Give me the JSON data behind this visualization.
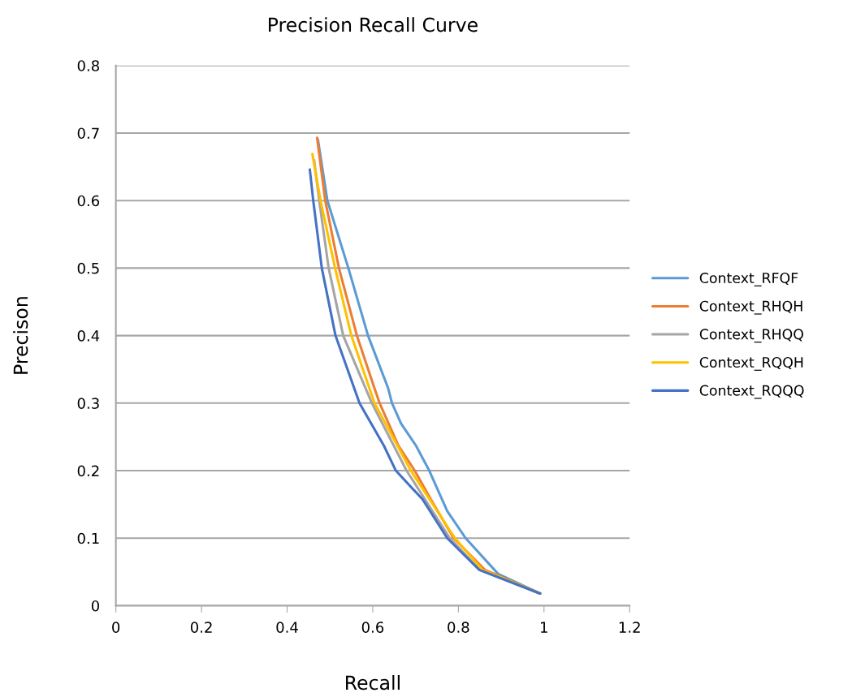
{
  "chart_data": {
    "type": "line",
    "title": "Precision Recall Curve",
    "xlabel": "Recall",
    "ylabel": "Precison",
    "xlim": [
      0,
      1.2
    ],
    "xticks": [
      0,
      0.2,
      0.4,
      0.6,
      0.8,
      1,
      1.2
    ],
    "ylim": [
      0,
      0.8
    ],
    "yticks": [
      0,
      0.1,
      0.2,
      0.3,
      0.4,
      0.5,
      0.6,
      0.7,
      0.8
    ],
    "grid": "y",
    "legend": "right",
    "marker": "none",
    "line_style": "solid",
    "series": [
      {
        "name": "Context_RFQF",
        "color": "#5b9bd5",
        "x": [
          0.472,
          0.494,
          0.543,
          0.589,
          0.636,
          0.645,
          0.666,
          0.701,
          0.732,
          0.774,
          0.817,
          0.893,
          0.991
        ],
        "values": [
          0.69,
          0.6,
          0.5,
          0.4,
          0.322,
          0.3,
          0.27,
          0.237,
          0.2,
          0.14,
          0.1,
          0.047,
          0.018
        ]
      },
      {
        "name": "Context_RHQH",
        "color": "#ed7d31",
        "x": [
          0.47,
          0.489,
          0.521,
          0.563,
          0.604,
          0.616,
          0.66,
          0.698,
          0.736,
          0.789,
          0.862,
          0.991
        ],
        "values": [
          0.693,
          0.6,
          0.5,
          0.4,
          0.322,
          0.3,
          0.237,
          0.2,
          0.157,
          0.1,
          0.053,
          0.018
        ]
      },
      {
        "name": "Context_RHQQ",
        "color": "#a5a5a5",
        "x": [
          0.463,
          0.475,
          0.497,
          0.531,
          0.598,
          0.679,
          0.78,
          0.85,
          0.991
        ],
        "values": [
          0.66,
          0.6,
          0.5,
          0.4,
          0.3,
          0.2,
          0.1,
          0.053,
          0.018
        ]
      },
      {
        "name": "Context_RQQH",
        "color": "#ffc000",
        "x": [
          0.459,
          0.478,
          0.512,
          0.55,
          0.604,
          0.689,
          0.792,
          0.856,
          0.991
        ],
        "values": [
          0.669,
          0.6,
          0.5,
          0.4,
          0.3,
          0.2,
          0.1,
          0.053,
          0.018
        ]
      },
      {
        "name": "Context_RQQQ",
        "color": "#4472c4",
        "x": [
          0.453,
          0.461,
          0.481,
          0.513,
          0.569,
          0.626,
          0.654,
          0.717,
          0.774,
          0.849,
          0.991
        ],
        "values": [
          0.646,
          0.6,
          0.5,
          0.4,
          0.3,
          0.237,
          0.2,
          0.157,
          0.1,
          0.053,
          0.018
        ]
      }
    ]
  }
}
